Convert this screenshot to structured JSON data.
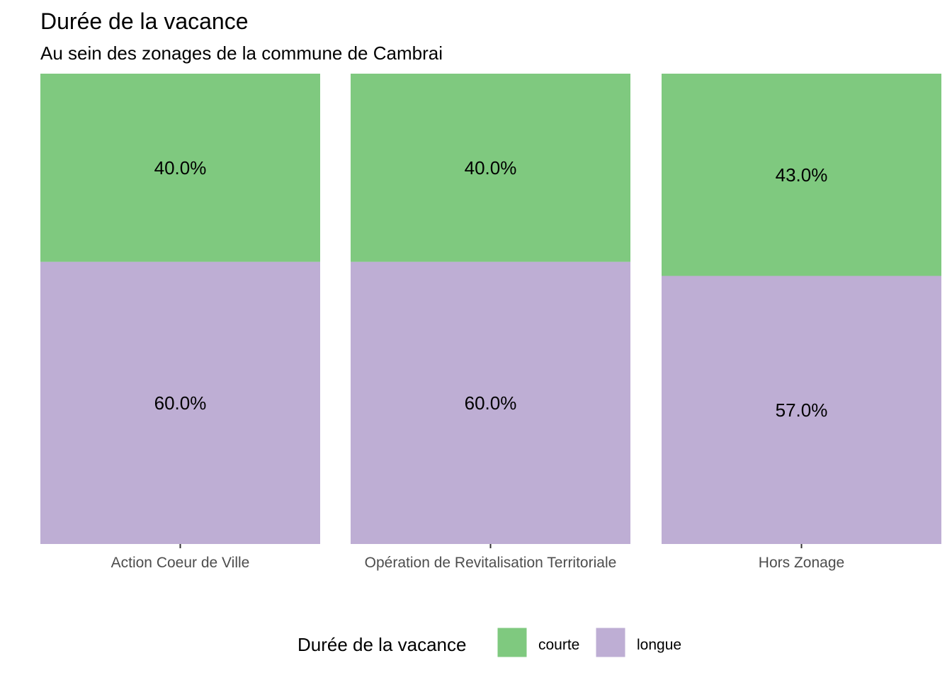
{
  "chart_data": {
    "type": "bar",
    "stacked": true,
    "normalized": true,
    "title": "Durée de la vacance",
    "subtitle": "Au sein des zonages de la commune de Cambrai",
    "categories": [
      "Action Coeur de Ville",
      "Opération de Revitalisation Territoriale",
      "Hors Zonage"
    ],
    "series": [
      {
        "name": "courte",
        "color": "#7fc97f",
        "values": [
          40.0,
          40.0,
          43.0
        ],
        "labels": [
          "40.0%",
          "40.0%",
          "43.0%"
        ]
      },
      {
        "name": "longue",
        "color": "#beaed4",
        "values": [
          60.0,
          60.0,
          57.0
        ],
        "labels": [
          "60.0%",
          "60.0%",
          "57.0%"
        ]
      }
    ],
    "ylim": [
      0,
      100
    ],
    "grid": false,
    "y_axis_visible": false,
    "legend": {
      "title": "Durée de la vacance",
      "position": "bottom",
      "entries": [
        "courte",
        "longue"
      ]
    }
  }
}
